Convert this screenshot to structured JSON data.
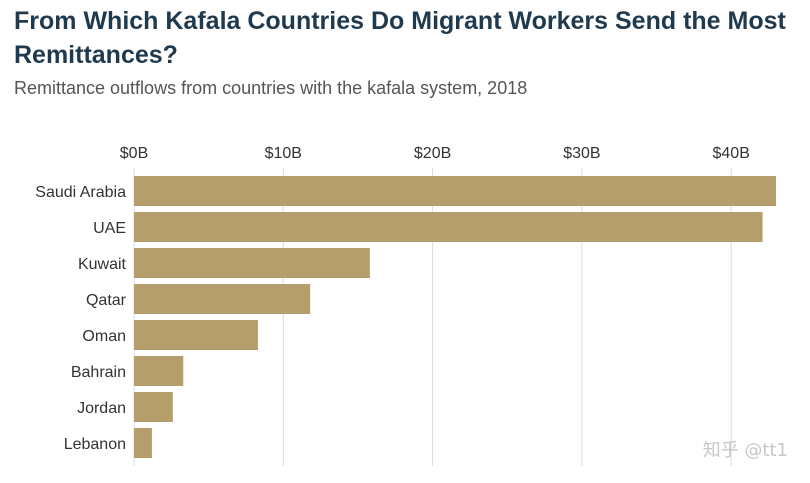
{
  "header": {
    "title": "From Which Kafala Countries Do Migrant Workers Send the Most Remittances?",
    "subtitle": "Remittance outflows from countries with the kafala system, 2018"
  },
  "watermark": "知乎 @tt1",
  "colors": {
    "bar": "#b69d6c",
    "grid": "#dddddd",
    "title": "#1f3a4f"
  },
  "chart_data": {
    "type": "bar",
    "orientation": "horizontal",
    "title": "From Which Kafala Countries Do Migrant Workers Send the Most Remittances?",
    "subtitle": "Remittance outflows from countries with the kafala system, 2018",
    "xlabel": "",
    "ylabel": "",
    "xlim": [
      0,
      43
    ],
    "x_ticks": [
      0,
      10,
      20,
      30,
      40
    ],
    "x_tick_labels": [
      "$0B",
      "$10B",
      "$20B",
      "$30B",
      "$40B"
    ],
    "axis_position": "top",
    "grid": true,
    "categories": [
      "Saudi Arabia",
      "UAE",
      "Kuwait",
      "Qatar",
      "Oman",
      "Bahrain",
      "Jordan",
      "Lebanon"
    ],
    "values": [
      43.0,
      42.1,
      15.8,
      11.8,
      8.3,
      3.3,
      2.6,
      1.2
    ],
    "unit": "billion USD"
  }
}
